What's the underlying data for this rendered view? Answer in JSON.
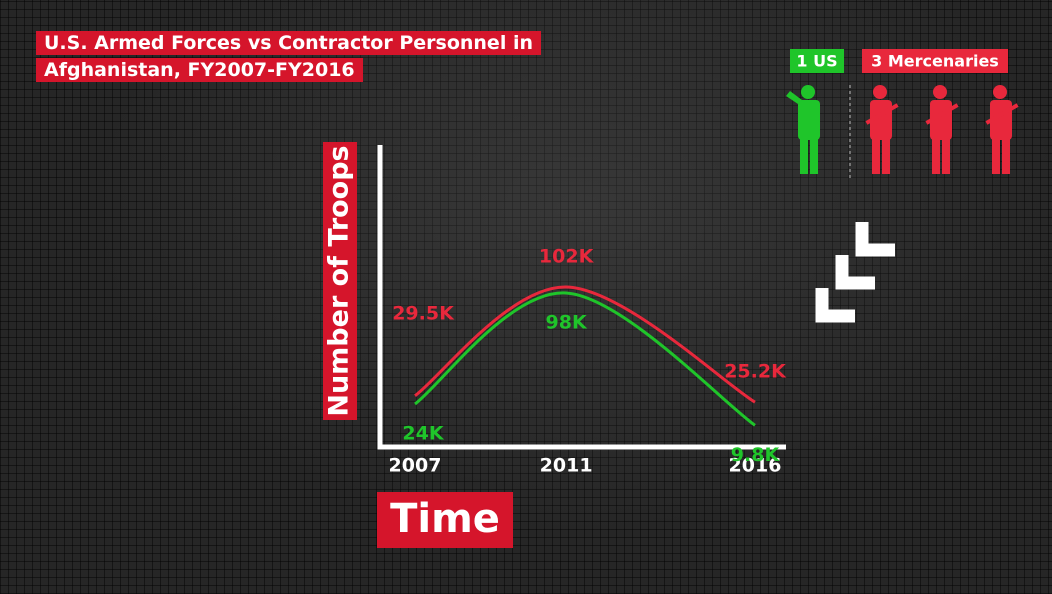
{
  "chart_data": {
    "type": "line",
    "title": "U.S. Armed Forces vs Contractor Personnel in Afghanistan, FY2007-FY2016",
    "y_label": "Number of Troops",
    "x_label": "Time",
    "x": [
      2007,
      2011,
      2016
    ],
    "series": [
      {
        "name": "3 Mercenaries",
        "color": "#e8283c",
        "values": [
          29.5,
          102,
          25.2
        ],
        "value_labels": [
          "29.5K",
          "102K",
          "25.2K"
        ]
      },
      {
        "name": "1 US",
        "color": "#1fc52a",
        "values": [
          24,
          98,
          9.8
        ],
        "value_labels": [
          "24K",
          "98K",
          "9.8K"
        ]
      }
    ]
  }
}
